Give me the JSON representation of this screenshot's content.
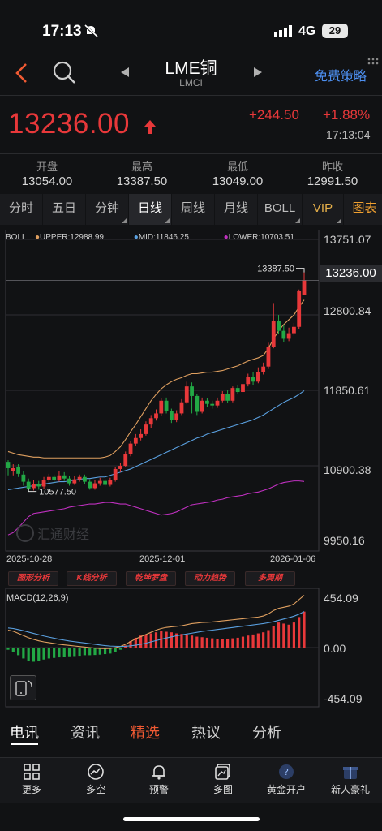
{
  "status": {
    "time": "17:13",
    "network": "4G",
    "battery": "29"
  },
  "header": {
    "title": "LME铜",
    "subtitle": "LMCI",
    "strategy_label": "免费策略"
  },
  "quote": {
    "price": "13236.00",
    "change": "+244.50",
    "change_pct": "+1.88%",
    "time": "17:13:04",
    "stats": [
      {
        "label": "开盘",
        "value": "13054.00"
      },
      {
        "label": "最高",
        "value": "13387.50"
      },
      {
        "label": "最低",
        "value": "13049.00"
      },
      {
        "label": "昨收",
        "value": "12991.50"
      }
    ]
  },
  "tabs": [
    "分时",
    "五日",
    "分钟",
    "日线",
    "周线",
    "月线",
    "BOLL",
    "VIP",
    "图表"
  ],
  "active_tab": "日线",
  "colors": {
    "up": "#e8383a",
    "down": "#22a845",
    "upper": "#e0a060",
    "mid": "#5aa0e0",
    "lower": "#c030c0",
    "accent": "#4d8ff0"
  },
  "chart_data": [
    {
      "type": "candlestick",
      "indicator": "BOLL",
      "legend": {
        "name": "BOLL",
        "upper": "UPPER:12988.99",
        "mid": "MID:11846.25",
        "lower": "LOWER:10703.51"
      },
      "y_ticks": [
        "13751.07",
        "12800.84",
        "11850.61",
        "10900.38",
        "9950.16"
      ],
      "ylim": [
        9950.16,
        13751.07
      ],
      "x_ticks": [
        "2025-10-28",
        "2025-12-01",
        "2026-01-06"
      ],
      "max_label": "13387.50",
      "min_label": "10577.50",
      "current_label": "13236.00",
      "candles": [
        [
          10950,
          10870,
          10970,
          10780
        ],
        [
          10830,
          10870,
          10920,
          10780
        ],
        [
          10880,
          10800,
          10920,
          10760
        ],
        [
          10790,
          10700,
          10830,
          10650
        ],
        [
          10700,
          10610,
          10740,
          10578
        ],
        [
          10620,
          10670,
          10720,
          10590
        ],
        [
          10670,
          10640,
          10710,
          10600
        ],
        [
          10640,
          10720,
          10760,
          10610
        ],
        [
          10720,
          10760,
          10800,
          10690
        ],
        [
          10760,
          10720,
          10790,
          10680
        ],
        [
          10720,
          10780,
          10830,
          10700
        ],
        [
          10780,
          10740,
          10820,
          10710
        ],
        [
          10740,
          10680,
          10770,
          10650
        ],
        [
          10680,
          10730,
          10770,
          10660
        ],
        [
          10730,
          10760,
          10790,
          10700
        ],
        [
          10760,
          10700,
          10790,
          10670
        ],
        [
          10700,
          10620,
          10730,
          10600
        ],
        [
          10620,
          10680,
          10720,
          10600
        ],
        [
          10680,
          10710,
          10750,
          10650
        ],
        [
          10710,
          10660,
          10740,
          10640
        ],
        [
          10660,
          10720,
          10750,
          10640
        ],
        [
          10720,
          10860,
          10880,
          10700
        ],
        [
          10860,
          10900,
          10940,
          10820
        ],
        [
          10900,
          11050,
          11080,
          10880
        ],
        [
          11050,
          11180,
          11210,
          11020
        ],
        [
          11180,
          11250,
          11300,
          11150
        ],
        [
          11250,
          11300,
          11360,
          11220
        ],
        [
          11300,
          11420,
          11460,
          11280
        ],
        [
          11420,
          11500,
          11540,
          11380
        ],
        [
          11500,
          11560,
          11610,
          11470
        ],
        [
          11560,
          11720,
          11750,
          11530
        ],
        [
          11720,
          11590,
          11760,
          11560
        ],
        [
          11590,
          11480,
          11620,
          11440
        ],
        [
          11480,
          11560,
          11600,
          11450
        ],
        [
          11560,
          11700,
          11740,
          11540
        ],
        [
          11700,
          11900,
          11960,
          11680
        ],
        [
          11900,
          11780,
          11950,
          11560
        ],
        [
          11780,
          11580,
          11810,
          11540
        ],
        [
          11580,
          11720,
          11760,
          11560
        ],
        [
          11720,
          11680,
          11750,
          11640
        ],
        [
          11680,
          11660,
          11720,
          11620
        ],
        [
          11660,
          11720,
          11760,
          11630
        ],
        [
          11720,
          11800,
          11840,
          11700
        ],
        [
          11800,
          11720,
          11850,
          11690
        ],
        [
          11720,
          11880,
          11900,
          11700
        ],
        [
          11880,
          11830,
          11920,
          11800
        ],
        [
          11830,
          11930,
          11960,
          11810
        ],
        [
          11930,
          12020,
          12060,
          11900
        ],
        [
          12020,
          11960,
          12080,
          11920
        ],
        [
          11960,
          12080,
          12140,
          11940
        ],
        [
          12080,
          12150,
          12200,
          12050
        ],
        [
          12150,
          12400,
          12450,
          12120
        ],
        [
          12400,
          12720,
          12950,
          12380
        ],
        [
          12720,
          12600,
          12800,
          12560
        ],
        [
          12600,
          12500,
          12680,
          12460
        ],
        [
          12500,
          12570,
          12640,
          12470
        ],
        [
          12570,
          12650,
          12700,
          12540
        ],
        [
          12650,
          13100,
          13120,
          12620
        ],
        [
          13054,
          13236,
          13387.5,
          13049
        ]
      ],
      "upper_band": [
        11080,
        11060,
        11040,
        11030,
        11020,
        11010,
        11010,
        11000,
        11000,
        11000,
        11000,
        11000,
        11000,
        11000,
        11000,
        11000,
        11000,
        11000,
        11000,
        11010,
        11030,
        11080,
        11140,
        11230,
        11330,
        11420,
        11520,
        11620,
        11720,
        11800,
        11870,
        11920,
        11960,
        11990,
        12010,
        12040,
        12060,
        12060,
        12070,
        12080,
        12080,
        12090,
        12100,
        12120,
        12140,
        12160,
        12190,
        12220,
        12240,
        12260,
        12290,
        12380,
        12500,
        12600,
        12680,
        12740,
        12800,
        12900,
        12988.99
      ],
      "mid_band": [
        10600,
        10610,
        10620,
        10630,
        10640,
        10650,
        10660,
        10670,
        10680,
        10690,
        10700,
        10700,
        10710,
        10720,
        10730,
        10740,
        10740,
        10750,
        10760,
        10760,
        10780,
        10800,
        10820,
        10840,
        10860,
        10890,
        10920,
        10950,
        10980,
        11010,
        11040,
        11070,
        11100,
        11130,
        11160,
        11190,
        11220,
        11250,
        11270,
        11300,
        11320,
        11340,
        11360,
        11380,
        11400,
        11420,
        11440,
        11460,
        11480,
        11510,
        11540,
        11580,
        11620,
        11660,
        11700,
        11730,
        11760,
        11800,
        11846.25
      ],
      "lower_band": [
        10030,
        10060,
        10120,
        10190,
        10260,
        10300,
        10310,
        10320,
        10330,
        10340,
        10350,
        10360,
        10380,
        10390,
        10400,
        10410,
        10420,
        10420,
        10430,
        10440,
        10440,
        10430,
        10420,
        10420,
        10400,
        10380,
        10360,
        10340,
        10320,
        10300,
        10280,
        10290,
        10300,
        10320,
        10350,
        10380,
        10410,
        10420,
        10430,
        10440,
        10450,
        10470,
        10480,
        10500,
        10510,
        10520,
        10530,
        10550,
        10560,
        10570,
        10590,
        10610,
        10640,
        10670,
        10690,
        10700,
        10710,
        10710,
        10703.51
      ]
    },
    {
      "type": "bar",
      "indicator": "MACD",
      "title": "MACD(12,26,9)",
      "y_ticks": [
        "454.09",
        "0.00",
        "-454.09"
      ],
      "ylim": [
        -454.09,
        454.09
      ],
      "hist": [
        -20,
        -40,
        -70,
        -100,
        -120,
        -130,
        -120,
        -110,
        -100,
        -95,
        -90,
        -85,
        -80,
        -78,
        -75,
        -70,
        -70,
        -68,
        -65,
        -60,
        -55,
        -40,
        -20,
        20,
        60,
        90,
        110,
        120,
        130,
        140,
        150,
        145,
        140,
        130,
        125,
        120,
        110,
        100,
        95,
        90,
        85,
        80,
        80,
        82,
        85,
        90,
        100,
        110,
        120,
        130,
        140,
        160,
        200,
        230,
        220,
        210,
        230,
        280,
        330
      ],
      "dif": [
        160,
        150,
        130,
        110,
        90,
        75,
        62,
        52,
        45,
        38,
        30,
        25,
        20,
        15,
        10,
        5,
        0,
        -5,
        -8,
        -10,
        -8,
        0,
        10,
        30,
        55,
        80,
        100,
        120,
        140,
        160,
        175,
        185,
        190,
        195,
        200,
        210,
        220,
        225,
        230,
        232,
        235,
        240,
        245,
        250,
        255,
        260,
        265,
        270,
        275,
        280,
        290,
        310,
        340,
        360,
        370,
        380,
        400,
        440,
        480
      ],
      "dea": [
        180,
        175,
        165,
        155,
        142,
        130,
        118,
        106,
        96,
        86,
        76,
        68,
        60,
        54,
        48,
        42,
        36,
        30,
        24,
        18,
        14,
        12,
        11,
        12,
        16,
        22,
        30,
        40,
        52,
        64,
        76,
        88,
        98,
        108,
        116,
        124,
        132,
        140,
        148,
        154,
        160,
        166,
        172,
        178,
        184,
        190,
        196,
        202,
        208,
        214,
        220,
        228,
        238,
        250,
        262,
        274,
        288,
        306,
        330
      ]
    }
  ],
  "watermark": "汇通财经",
  "features": [
    "图形分析",
    "K线分析",
    "乾坤罗盘",
    "动力趋势",
    "多周期"
  ],
  "bottom_tabs": [
    "电讯",
    "资讯",
    "精选",
    "热议",
    "分析"
  ],
  "bottom_nav": [
    {
      "label": "更多",
      "icon": "grid-icon"
    },
    {
      "label": "多空",
      "icon": "trend-icon"
    },
    {
      "label": "预警",
      "icon": "bell-icon"
    },
    {
      "label": "多图",
      "icon": "multi-chart-icon"
    },
    {
      "label": "黄金开户",
      "icon": "account-icon"
    },
    {
      "label": "新人豪礼",
      "icon": "gift-icon"
    }
  ]
}
